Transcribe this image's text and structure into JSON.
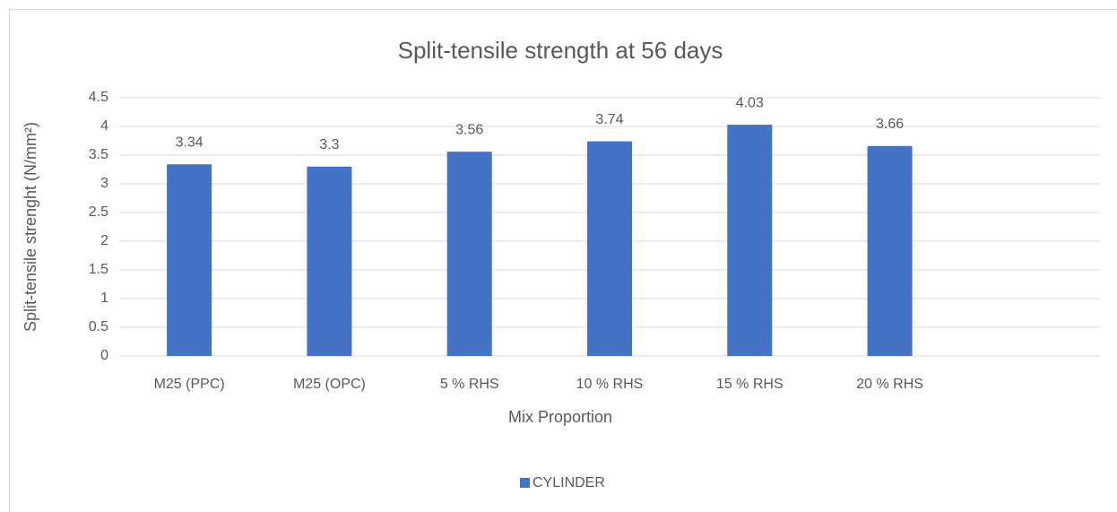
{
  "chart_data": {
    "type": "bar",
    "title": "Split-tensile strength at 56 days",
    "x_label": "Mix Proportion",
    "y_label": "Split-tensile strenght (N/mm²)",
    "categories": [
      "M25 (PPC)",
      "M25 (OPC)",
      "5 % RHS",
      "10 % RHS",
      "15 % RHS",
      "20 % RHS",
      null
    ],
    "series": [
      {
        "name": "CYLINDER",
        "color": "#4472c4",
        "values": [
          3.34,
          3.3,
          3.56,
          3.74,
          4.03,
          3.66,
          null
        ]
      }
    ],
    "ylim": [
      0,
      4.5
    ],
    "yticks": [
      0,
      0.5,
      1,
      1.5,
      2,
      2.5,
      3,
      3.5,
      4,
      4.5
    ],
    "grid": true,
    "legend": "bottom",
    "data_labels": true
  }
}
